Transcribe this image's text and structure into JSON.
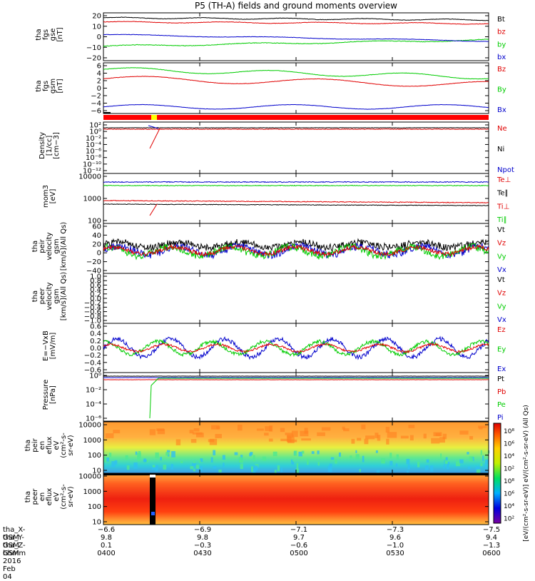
{
  "title": "P5 (TH-A) fields and ground moments overview",
  "panels": [
    {
      "id": "fgs_gse",
      "ylabel": [
        "tha",
        "fgs",
        "gse",
        "[nT]"
      ],
      "ticks": [
        "20",
        "10",
        "0",
        "−10",
        "−20"
      ],
      "ylim": [
        -20,
        22
      ],
      "legend": [
        {
          "text": "Bt",
          "color": "#000000"
        },
        {
          "text": "bz",
          "color": "#e00000"
        },
        {
          "text": "by",
          "color": "#00cc00"
        },
        {
          "text": "bx",
          "color": "#0000cc"
        }
      ]
    },
    {
      "id": "fgs_gsm",
      "ylabel": [
        "tha",
        "fgs",
        "gsm",
        "[nT]"
      ],
      "ticks": [
        "6",
        "4",
        "2",
        "0",
        "−2",
        "−4",
        "−6"
      ],
      "ylim": [
        -7,
        7
      ],
      "legend": [
        {
          "text": "Bz",
          "color": "#e00000"
        },
        {
          "text": "By",
          "color": "#00cc00"
        },
        {
          "text": "Bx",
          "color": "#0000cc"
        }
      ]
    },
    {
      "id": "density",
      "ylabel": [
        "Density",
        "[1/cc]",
        "[cm−3]"
      ],
      "ticks": [
        "10²",
        "10⁰",
        "10⁻²",
        "10⁻⁴",
        "10⁻⁶",
        "10⁻⁸",
        "10⁻¹⁰",
        "10⁻¹²"
      ],
      "legend": [
        {
          "text": "Ne",
          "color": "#e00000"
        },
        {
          "text": "Ni",
          "color": "#000000"
        },
        {
          "text": "Npot",
          "color": "#0000cc"
        }
      ]
    },
    {
      "id": "temp",
      "ylabel": [
        "mom3",
        "[eV]"
      ],
      "ticks": [
        "10000",
        "1000",
        "100"
      ],
      "legend": [
        {
          "text": "Te⊥",
          "color": "#e00000"
        },
        {
          "text": "Te∥",
          "color": "#000000"
        },
        {
          "text": "Ti⊥",
          "color": "#e00000"
        },
        {
          "text": "Ti∥",
          "color": "#00cc00"
        }
      ]
    },
    {
      "id": "peir_vel",
      "ylabel": [
        "tha",
        "peir",
        "velocity",
        "gsm",
        "[km/s](All Qs)"
      ],
      "ticks": [
        "60",
        "40",
        "20",
        "0",
        "−20",
        "−40"
      ],
      "legend": [
        {
          "text": "Vt",
          "color": "#000000"
        },
        {
          "text": "Vz",
          "color": "#e00000"
        },
        {
          "text": "Vy",
          "color": "#00cc00"
        },
        {
          "text": "Vx",
          "color": "#0000cc"
        }
      ]
    },
    {
      "id": "peer_vel",
      "ylabel": [
        "tha",
        "peer",
        "velocity",
        "gsm",
        "[km/s](All Qs)"
      ],
      "ticks": [
        "1.0",
        "0.8",
        "0.6",
        "0.4",
        "0.2",
        "0.0",
        "−0.2",
        "−0.4",
        "−0.6",
        "−0.8",
        "−1.0"
      ],
      "legend": [
        {
          "text": "Vt",
          "color": "#000000"
        },
        {
          "text": "Vz",
          "color": "#e00000"
        },
        {
          "text": "Vy",
          "color": "#00cc00"
        },
        {
          "text": "Vx",
          "color": "#0000cc"
        }
      ]
    },
    {
      "id": "efield",
      "ylabel": [
        "E=−VxB",
        "[mV/m]"
      ],
      "ticks": [
        "0.6",
        "0.4",
        "0.2",
        "0.0",
        "−0.2",
        "−0.4",
        "−0.6"
      ],
      "legend": [
        {
          "text": "Ez",
          "color": "#e00000"
        },
        {
          "text": "Ey",
          "color": "#00cc00"
        },
        {
          "text": "Ex",
          "color": "#0000cc"
        }
      ]
    },
    {
      "id": "pressure",
      "ylabel": [
        "Pressure",
        "[nPa]"
      ],
      "ticks": [
        "10⁰",
        "10⁻²",
        "10⁻⁴",
        "10⁻⁶"
      ],
      "legend": [
        {
          "text": "Pt",
          "color": "#000000"
        },
        {
          "text": "Pb",
          "color": "#e00000"
        },
        {
          "text": "Pe",
          "color": "#00cc00"
        },
        {
          "text": "Pi",
          "color": "#0000cc"
        }
      ]
    },
    {
      "id": "peir_flux",
      "ylabel": [
        "tha",
        "peir",
        "en",
        "eflux",
        "eV",
        "(cm²-s-",
        "sr-eV)"
      ],
      "ticks": [
        "10000",
        "1000",
        "100",
        "10"
      ]
    },
    {
      "id": "peer_flux",
      "ylabel": [
        "tha",
        "peer",
        "en",
        "eflux",
        "eV",
        "(cm²-s-",
        "sr-eV)"
      ],
      "ticks": [
        "10000",
        "1000",
        "100",
        "10"
      ]
    }
  ],
  "colorbar": {
    "ticks": [
      "10⁸",
      "10⁶",
      "10⁴",
      "10²",
      "10⁸",
      "10⁶",
      "10⁴",
      "10²"
    ],
    "label": "[eV/(cm²-s-sr-eV)]  eV/(cm²-s-sr-eV) (All Qs)"
  },
  "footer": {
    "rows": [
      {
        "label": "tha_X-GSM",
        "values": [
          "−6.6",
          "−6.9",
          "−7.1",
          "−7.3",
          "−7.5"
        ]
      },
      {
        "label": "tha_Y-GSM",
        "values": [
          "9.8",
          "9.8",
          "9.7",
          "9.6",
          "9.4"
        ]
      },
      {
        "label": "tha_Z-GSM",
        "values": [
          "0.1",
          "−0.3",
          "−0.6",
          "−1.0",
          "−1.3"
        ]
      },
      {
        "label": "hhmm",
        "values": [
          "0400",
          "0430",
          "0500",
          "0530",
          "0600"
        ]
      }
    ],
    "date": "2016 Feb 04"
  },
  "chart_data": {
    "type": "line",
    "title": "P5 (TH-A) fields and ground moments overview",
    "x": [
      "0400",
      "0430",
      "0500",
      "0530",
      "0600"
    ],
    "series": [
      {
        "name": "Bt",
        "panel": "fgs_gse",
        "values": [
          17,
          16,
          15,
          14,
          14
        ]
      },
      {
        "name": "bz",
        "panel": "fgs_gse",
        "values": [
          14,
          14,
          13,
          13,
          12
        ]
      },
      {
        "name": "by",
        "panel": "fgs_gse",
        "values": [
          -9,
          -7,
          -5,
          -3,
          -3
        ]
      },
      {
        "name": "bx",
        "panel": "fgs_gse",
        "values": [
          2,
          0,
          -2,
          -4,
          -4
        ]
      },
      {
        "name": "Bz",
        "panel": "fgs_gsm",
        "values": [
          2,
          3,
          2,
          1,
          1
        ]
      },
      {
        "name": "By",
        "panel": "fgs_gsm",
        "values": [
          5,
          4,
          3,
          2,
          3
        ]
      },
      {
        "name": "Bx",
        "panel": "fgs_gsm",
        "values": [
          -5,
          -5,
          -5,
          -6,
          -5
        ]
      },
      {
        "name": "Vt",
        "panel": "peir_vel",
        "values": [
          20,
          20,
          15,
          15,
          20
        ]
      },
      {
        "name": "Ez",
        "panel": "efield",
        "values": [
          0,
          0,
          0,
          0,
          0
        ]
      }
    ],
    "ylim": [
      -20,
      22
    ]
  }
}
